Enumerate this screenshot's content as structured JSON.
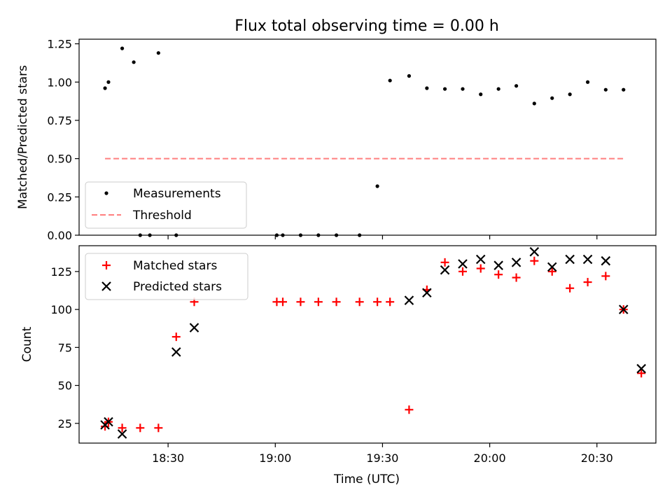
{
  "chart_data": [
    {
      "type": "scatter",
      "title": "Flux total observing time = 0.00 h",
      "xlabel": "",
      "ylabel": "Matched/Predicted stars",
      "xlim": [
        18.085,
        20.775
      ],
      "ylim": [
        0.0,
        1.28
      ],
      "yticks": [
        {
          "v": 0.0,
          "label": "0.00"
        },
        {
          "v": 0.25,
          "label": "0.25"
        },
        {
          "v": 0.5,
          "label": "0.50"
        },
        {
          "v": 0.75,
          "label": "0.75"
        },
        {
          "v": 1.0,
          "label": "1.00"
        },
        {
          "v": 1.25,
          "label": "1.25"
        }
      ],
      "xticks": [
        18.5,
        19.0,
        19.5,
        20.0,
        20.5
      ],
      "legend": {
        "position": "lower-left",
        "entries": [
          "Measurements",
          "Threshold"
        ]
      },
      "series": [
        {
          "name": "Measurements",
          "color": "#000000",
          "marker": "dot",
          "x": [
            18.206,
            18.222,
            18.286,
            18.34,
            18.37,
            18.415,
            18.455,
            18.538,
            19.007,
            19.035,
            19.118,
            19.201,
            19.285,
            19.393,
            19.476,
            19.535,
            19.624,
            19.707,
            19.791,
            19.874,
            19.958,
            20.041,
            20.124,
            20.208,
            20.291,
            20.374,
            20.457,
            20.541,
            20.624
          ],
          "y": [
            0.96,
            1.0,
            1.22,
            1.13,
            0.0,
            0.0,
            1.19,
            0.0,
            0.0,
            0.0,
            0.0,
            0.0,
            0.0,
            0.0,
            0.32,
            1.01,
            1.04,
            0.96,
            0.955,
            0.955,
            0.92,
            0.955,
            0.975,
            0.86,
            0.895,
            0.92,
            1.0,
            0.95,
            0.95
          ]
        },
        {
          "name": "Threshold",
          "color": "#ff7f7f",
          "style": "dashed",
          "x": [
            18.206,
            20.624
          ],
          "y": [
            0.5,
            0.5
          ]
        }
      ]
    },
    {
      "type": "scatter",
      "title": "",
      "xlabel": "Time (UTC)",
      "ylabel": "Count",
      "xlim": [
        18.085,
        20.775
      ],
      "ylim": [
        12,
        142
      ],
      "yticks": [
        {
          "v": 25,
          "label": "25"
        },
        {
          "v": 50,
          "label": "50"
        },
        {
          "v": 75,
          "label": "75"
        },
        {
          "v": 100,
          "label": "100"
        },
        {
          "v": 125,
          "label": "125"
        }
      ],
      "xticks": [
        {
          "v": 18.5,
          "label": "18:30"
        },
        {
          "v": 19.0,
          "label": "19:00"
        },
        {
          "v": 19.5,
          "label": "19:30"
        },
        {
          "v": 20.0,
          "label": "20:00"
        },
        {
          "v": 20.5,
          "label": "20:30"
        }
      ],
      "legend": {
        "position": "top-left",
        "entries": [
          "Matched stars",
          "Predicted stars"
        ]
      },
      "series": [
        {
          "name": "Matched stars",
          "color": "#ff0000",
          "marker": "plus",
          "x": [
            18.206,
            18.222,
            18.286,
            18.37,
            18.455,
            18.538,
            18.622,
            19.007,
            19.035,
            19.118,
            19.201,
            19.285,
            19.393,
            19.476,
            19.535,
            19.624,
            19.707,
            19.791,
            19.874,
            19.958,
            20.041,
            20.124,
            20.208,
            20.291,
            20.374,
            20.457,
            20.541,
            20.624,
            20.707
          ],
          "y": [
            23,
            26,
            22,
            22,
            22,
            82,
            105,
            105,
            105,
            105,
            105,
            105,
            105,
            105,
            105,
            34,
            113,
            131,
            125,
            127,
            123,
            121,
            132,
            125,
            114,
            118,
            122,
            100,
            58
          ]
        },
        {
          "name": "Predicted stars",
          "color": "#000000",
          "marker": "x",
          "x": [
            18.206,
            18.222,
            18.286,
            18.538,
            18.622,
            19.624,
            19.707,
            19.791,
            19.874,
            19.958,
            20.041,
            20.124,
            20.208,
            20.291,
            20.374,
            20.457,
            20.541,
            20.624,
            20.707
          ],
          "y": [
            24,
            26,
            18,
            72,
            88,
            106,
            111,
            126,
            130,
            133,
            129,
            131,
            138,
            128,
            133,
            133,
            132,
            100,
            61
          ]
        }
      ]
    }
  ]
}
